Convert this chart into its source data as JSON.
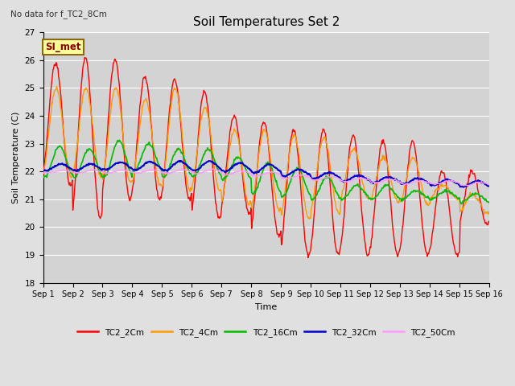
{
  "title": "Soil Temperatures Set 2",
  "subtitle": "No data for f_TC2_8Cm",
  "xlabel": "Time",
  "ylabel": "Soil Temperature (C)",
  "ylim": [
    18.0,
    27.0
  ],
  "yticks": [
    18.0,
    19.0,
    20.0,
    21.0,
    22.0,
    23.0,
    24.0,
    25.0,
    26.0,
    27.0
  ],
  "xtick_labels": [
    "Sep 1",
    "Sep 2",
    "Sep 3",
    "Sep 4",
    "Sep 5",
    "Sep 6",
    "Sep 7",
    "Sep 8",
    "Sep 9",
    "Sep 10",
    "Sep 11",
    "Sep 12",
    "Sep 13",
    "Sep 14",
    "Sep 15",
    "Sep 16"
  ],
  "series_colors": {
    "TC2_2Cm": "#FF0000",
    "TC2_4Cm": "#FF9900",
    "TC2_16Cm": "#00BB00",
    "TC2_32Cm": "#0000CC",
    "TC2_50Cm": "#FF99FF"
  },
  "series_lw": {
    "TC2_2Cm": 1.0,
    "TC2_4Cm": 1.0,
    "TC2_16Cm": 1.2,
    "TC2_32Cm": 1.5,
    "TC2_50Cm": 1.0
  },
  "background_color": "#E0E0E0",
  "plot_bg_color": "#D3D3D3",
  "grid_color": "#FFFFFF",
  "annotation_text": "SI_met",
  "annotation_bg": "#FFFF99",
  "annotation_border": "#8B6914",
  "peaks_2cm": [
    25.9,
    26.1,
    26.0,
    25.4,
    25.3,
    24.9,
    24.0,
    23.8,
    23.5,
    23.5,
    23.3,
    23.1,
    23.1,
    22.0,
    22.0
  ],
  "troughs_2cm": [
    21.5,
    20.3,
    21.0,
    21.0,
    21.0,
    20.3,
    20.5,
    19.7,
    19.0,
    19.0,
    19.0,
    19.0,
    19.0,
    19.0,
    20.1
  ],
  "peaks_4cm": [
    25.0,
    25.0,
    25.0,
    24.6,
    25.0,
    24.3,
    23.5,
    23.5,
    23.3,
    23.2,
    22.8,
    22.5,
    22.5,
    21.5,
    21.2
  ],
  "troughs_4cm": [
    21.8,
    21.8,
    21.6,
    21.5,
    21.3,
    21.3,
    20.8,
    20.6,
    20.3,
    20.5,
    21.0,
    20.9,
    20.8,
    21.0,
    20.5
  ],
  "peaks_16cm": [
    22.9,
    22.8,
    23.1,
    23.0,
    22.8,
    22.8,
    22.5,
    22.3,
    22.1,
    21.8,
    21.5,
    21.5,
    21.3,
    21.3,
    21.2
  ],
  "troughs_16cm": [
    21.8,
    21.8,
    21.8,
    22.0,
    21.8,
    21.8,
    21.7,
    21.2,
    21.1,
    21.0,
    21.0,
    21.0,
    21.0,
    21.0,
    20.9
  ],
  "base_32cm": [
    22.15,
    22.15,
    22.2,
    22.2,
    22.2,
    22.2,
    22.15,
    22.1,
    21.95,
    21.85,
    21.75,
    21.7,
    21.65,
    21.6,
    21.55
  ],
  "amp_32cm": [
    0.12,
    0.12,
    0.13,
    0.15,
    0.16,
    0.17,
    0.16,
    0.15,
    0.12,
    0.1,
    0.1,
    0.1,
    0.1,
    0.1,
    0.1
  ],
  "base_50cm": [
    22.0,
    22.0,
    22.0,
    22.0,
    22.0,
    22.0,
    21.95,
    21.9,
    21.8,
    21.75,
    21.7,
    21.65,
    21.6,
    21.6,
    21.55
  ],
  "amp_50cm": [
    0.05,
    0.05,
    0.06,
    0.06,
    0.07,
    0.08,
    0.07,
    0.07,
    0.06,
    0.06,
    0.06,
    0.06,
    0.06,
    0.06,
    0.06
  ]
}
